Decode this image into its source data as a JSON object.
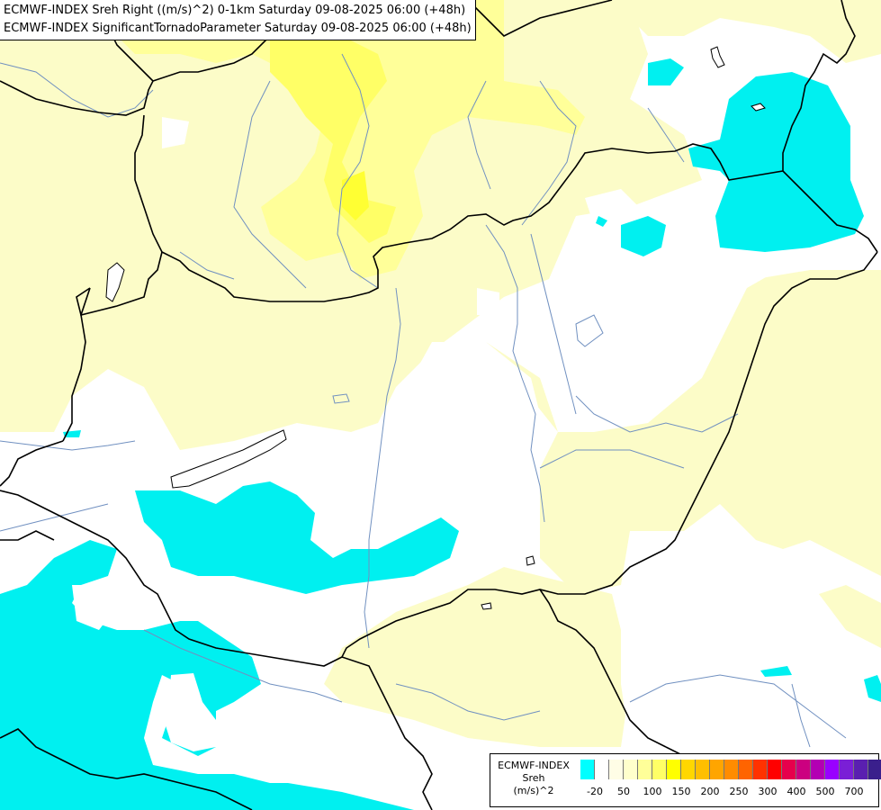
{
  "title": {
    "line1": "ECMWF-INDEX Sreh Right ((m/s)^2) 0-1km Saturday 09-08-2025 06:00 (+48h)",
    "line2": "ECMWF-INDEX SignificantTornadoParameter Saturday 09-08-2025 06:00 (+48h)"
  },
  "legend": {
    "line1": "ECMWF-INDEX",
    "line2": "Sreh",
    "line3": "(m/s)^2",
    "colors": [
      "#00ffff",
      "#ffffff",
      "#fffde6",
      "#ffffcc",
      "#ffff99",
      "#ffff66",
      "#ffff00",
      "#ffd700",
      "#ffbf00",
      "#ffa500",
      "#ff8c00",
      "#ff6400",
      "#ff3200",
      "#ff0000",
      "#e6004c",
      "#cc0080",
      "#b300b3",
      "#9900ff",
      "#7a1fd6",
      "#5a1fb0",
      "#3a1f8c",
      "#1a1a70"
    ],
    "ticks": [
      "-20",
      "50",
      "100",
      "150",
      "200",
      "250",
      "300",
      "400",
      "500",
      "700"
    ]
  },
  "map_colors": {
    "background": "#ffffff",
    "light_yellow": "#ffffcc",
    "yellow": "#ffff99",
    "bright_yellow": "#ffff55",
    "cyan": "#00ffff",
    "border": "#000000",
    "river": "#7090c0"
  }
}
